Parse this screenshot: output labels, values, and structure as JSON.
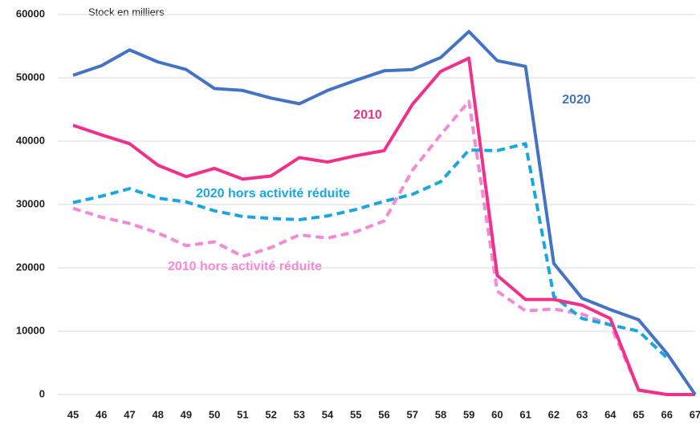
{
  "chart_data": {
    "type": "line",
    "y_label": "Stock en milliers",
    "categories": [
      "45",
      "46",
      "47",
      "48",
      "49",
      "50",
      "51",
      "52",
      "53",
      "54",
      "55",
      "56",
      "57",
      "58",
      "59",
      "60",
      "61",
      "62",
      "63",
      "64",
      "65",
      "66",
      "67"
    ],
    "series": [
      {
        "name": "2020",
        "color": "#4472c4",
        "dashed": false,
        "values": [
          50400,
          51900,
          54400,
          52500,
          51300,
          48300,
          48000,
          46800,
          45900,
          48000,
          49600,
          51100,
          51300,
          53200,
          57300,
          52700,
          51800,
          20700,
          15200,
          13400,
          11800,
          6500,
          0
        ]
      },
      {
        "name": "2010",
        "color": "#f0308a",
        "dashed": false,
        "values": [
          42500,
          41000,
          39600,
          36200,
          34400,
          35700,
          34000,
          34500,
          37400,
          36700,
          37700,
          38500,
          45800,
          51000,
          53100,
          18800,
          15000,
          15000,
          14100,
          12000,
          700,
          0,
          0
        ]
      },
      {
        "name": "2020 hors activité réduite",
        "color": "#1aa7e0",
        "dashed": true,
        "values": [
          30300,
          31300,
          32500,
          31000,
          30400,
          29000,
          28100,
          27800,
          27600,
          28200,
          29200,
          30500,
          31600,
          33600,
          38600,
          38500,
          39600,
          15500,
          12000,
          11000,
          10000,
          5800,
          null
        ]
      },
      {
        "name": "2010 hors activité réduite",
        "color": "#f48ad6",
        "dashed": true,
        "values": [
          29400,
          28000,
          27000,
          25500,
          23500,
          24100,
          21800,
          23200,
          25200,
          24700,
          25700,
          27400,
          35400,
          41000,
          46300,
          16300,
          13200,
          13500,
          12700,
          11000,
          700,
          0,
          0
        ]
      }
    ],
    "ylim": [
      0,
      60000
    ],
    "yticks": [
      0,
      10000,
      20000,
      30000,
      40000,
      50000,
      60000
    ],
    "grid": true
  }
}
